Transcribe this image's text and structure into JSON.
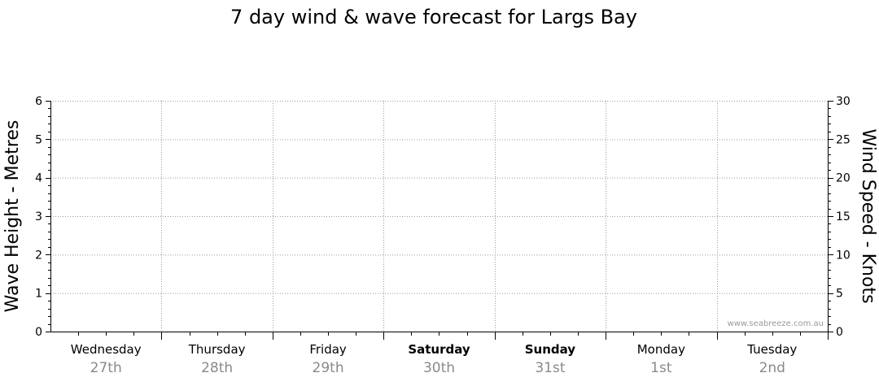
{
  "chart_data": {
    "type": "line",
    "title": "7 day wind & wave forecast for Largs Bay",
    "ylabel_left": "Wave Height - Metres",
    "ylabel_right": "Wind Speed - Knots",
    "ylim_left": [
      0,
      6
    ],
    "ylim_right": [
      0,
      30
    ],
    "yticks_left": [
      0,
      1,
      2,
      3,
      4,
      5,
      6
    ],
    "yticks_right": [
      0,
      5,
      10,
      15,
      20,
      25,
      30
    ],
    "grid": true,
    "days": [
      {
        "name": "Wednesday",
        "date": "27th",
        "weekend": false
      },
      {
        "name": "Thursday",
        "date": "28th",
        "weekend": false
      },
      {
        "name": "Friday",
        "date": "29th",
        "weekend": false
      },
      {
        "name": "Saturday",
        "date": "30th",
        "weekend": true
      },
      {
        "name": "Sunday",
        "date": "31st",
        "weekend": true
      },
      {
        "name": "Monday",
        "date": "1st",
        "weekend": false
      },
      {
        "name": "Tuesday",
        "date": "2nd",
        "weekend": false
      }
    ],
    "series": [],
    "watermark": "www.seabreeze.com.au"
  }
}
